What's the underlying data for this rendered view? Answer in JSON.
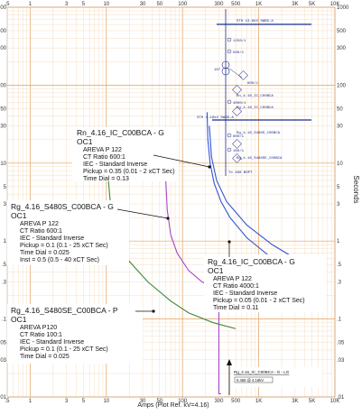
{
  "chart_data": {
    "type": "line",
    "title": "",
    "xlabel": "Amps (Plot Ref. kV=4.16)",
    "ylabel": "Seconds",
    "x_scale": "log",
    "y_scale": "log",
    "xlim": [
      0.5,
      10000
    ],
    "ylim": [
      0.01,
      1000
    ],
    "grid": true,
    "x_tick_labels_top": [
      ".5",
      "1",
      "3",
      "5",
      "10",
      "30",
      "50",
      "100",
      "300",
      "500",
      "1K",
      "3K",
      "5K",
      "10K"
    ],
    "x_tick_labels_bottom": [
      ".5",
      "1",
      "3",
      "5",
      "10",
      "30",
      "50",
      "100",
      "300",
      "500",
      "1K",
      "3K",
      "5K",
      "10K"
    ],
    "y_tick_labels_left": [
      "1000",
      "500",
      "300",
      "100",
      "50",
      "30",
      "10",
      "5",
      "3",
      "1",
      ".5",
      ".3",
      ".1",
      ".05",
      ".03",
      ".01"
    ],
    "y_tick_labels_right": [
      "1000",
      "500",
      "300",
      "100",
      "50",
      "30",
      "10",
      "5",
      "3",
      "1",
      ".5",
      ".3",
      ".1",
      ".05",
      ".03",
      ".01"
    ],
    "series": [
      {
        "color": "#2f55d4",
        "label_title": "Rn_4.16_IC_C00BCA - G",
        "label_lines": [
          "OC1",
          "AREVA P 122",
          "CT Ratio 600:1",
          "IEC - Standard Inverse",
          "Pickup = 0.35 (0.01 - 2 xCT Sec)",
          "Time Dial = 0.13"
        ],
        "x": [
          210,
          215,
          230,
          260,
          320,
          420,
          700,
          1500,
          3000
        ],
        "y": [
          45,
          20,
          10,
          5.5,
          3.2,
          2.0,
          1.1,
          0.6,
          0.4
        ]
      },
      {
        "color": "#aa44cc",
        "label_title": "Rg_4.16_S480S_C00BCA - G",
        "label_lines": [
          "OC1",
          "AREVA P 122",
          "CT Ratio 600:1",
          "IEC - Standard Inverse",
          "Pickup = 0.1 (0.1 - 25 xCT Sec)",
          "Time Dial = 0.025",
          "Inst = 0.5 (0.5 - 40 xCT Sec)"
        ],
        "x": [
          60,
          63,
          70,
          85,
          120,
          180,
          240,
          300,
          300,
          320
        ],
        "y": [
          6.5,
          2.5,
          1.2,
          0.7,
          0.42,
          0.3,
          0.26,
          0.25,
          0.011,
          0.011
        ]
      },
      {
        "color": "#3a8a3a",
        "label_title": "Rg_4.16_S480SE_C00BCA - P",
        "label_lines": [
          "OC1",
          "AREVA P120",
          "CT Ratio 100:1",
          "IEC - Standard Inverse",
          "Pickup = 0.1 (0.1 - 25 xCT Sec)",
          "Time Dial = 0.025"
        ],
        "x": [
          10.5,
          11.5,
          14,
          20,
          35,
          70,
          120,
          250,
          500
        ],
        "y": [
          7,
          2.5,
          1.1,
          0.55,
          0.3,
          0.17,
          0.12,
          0.09,
          0.075
        ]
      },
      {
        "color": "#2f55d4",
        "label_title": "Rg_4.16_IC_C00BCA - G",
        "label_lines": [
          "OC1",
          "AREVA P 122",
          "CT Ratio 4000:1",
          "IEC - Standard Inverse",
          "Pickup = 0.05 (0.01 - 2 xCT Sec)",
          "Time Dial = 0.11"
        ],
        "x": [
          225,
          240,
          280,
          380,
          700,
          1500,
          3000
        ],
        "y": [
          30,
          12,
          6,
          3.2,
          1.6,
          0.9,
          0.6
        ]
      }
    ],
    "annotations": [
      {
        "text": "Rg_4.16_IC_C00BCA - G - LG",
        "sub": "0.456 @ 4.16kV"
      }
    ],
    "one_line_diagram": {
      "labels": [
        "STH 13.8kV SWBD-A",
        "1250/1",
        "500/1",
        "600/1",
        "Rn_4.16_IC_C00BCA",
        "4000/1",
        "Rg_4.16_IC_C00BCA",
        "STH 4.16kV SWBD-A",
        "600/1",
        "Rg_4.16_S480S_C00BCA",
        "100/1",
        "Rg_4.16_S480SE_C00BCA",
        "To 480 BOPT",
        "167"
      ]
    }
  }
}
